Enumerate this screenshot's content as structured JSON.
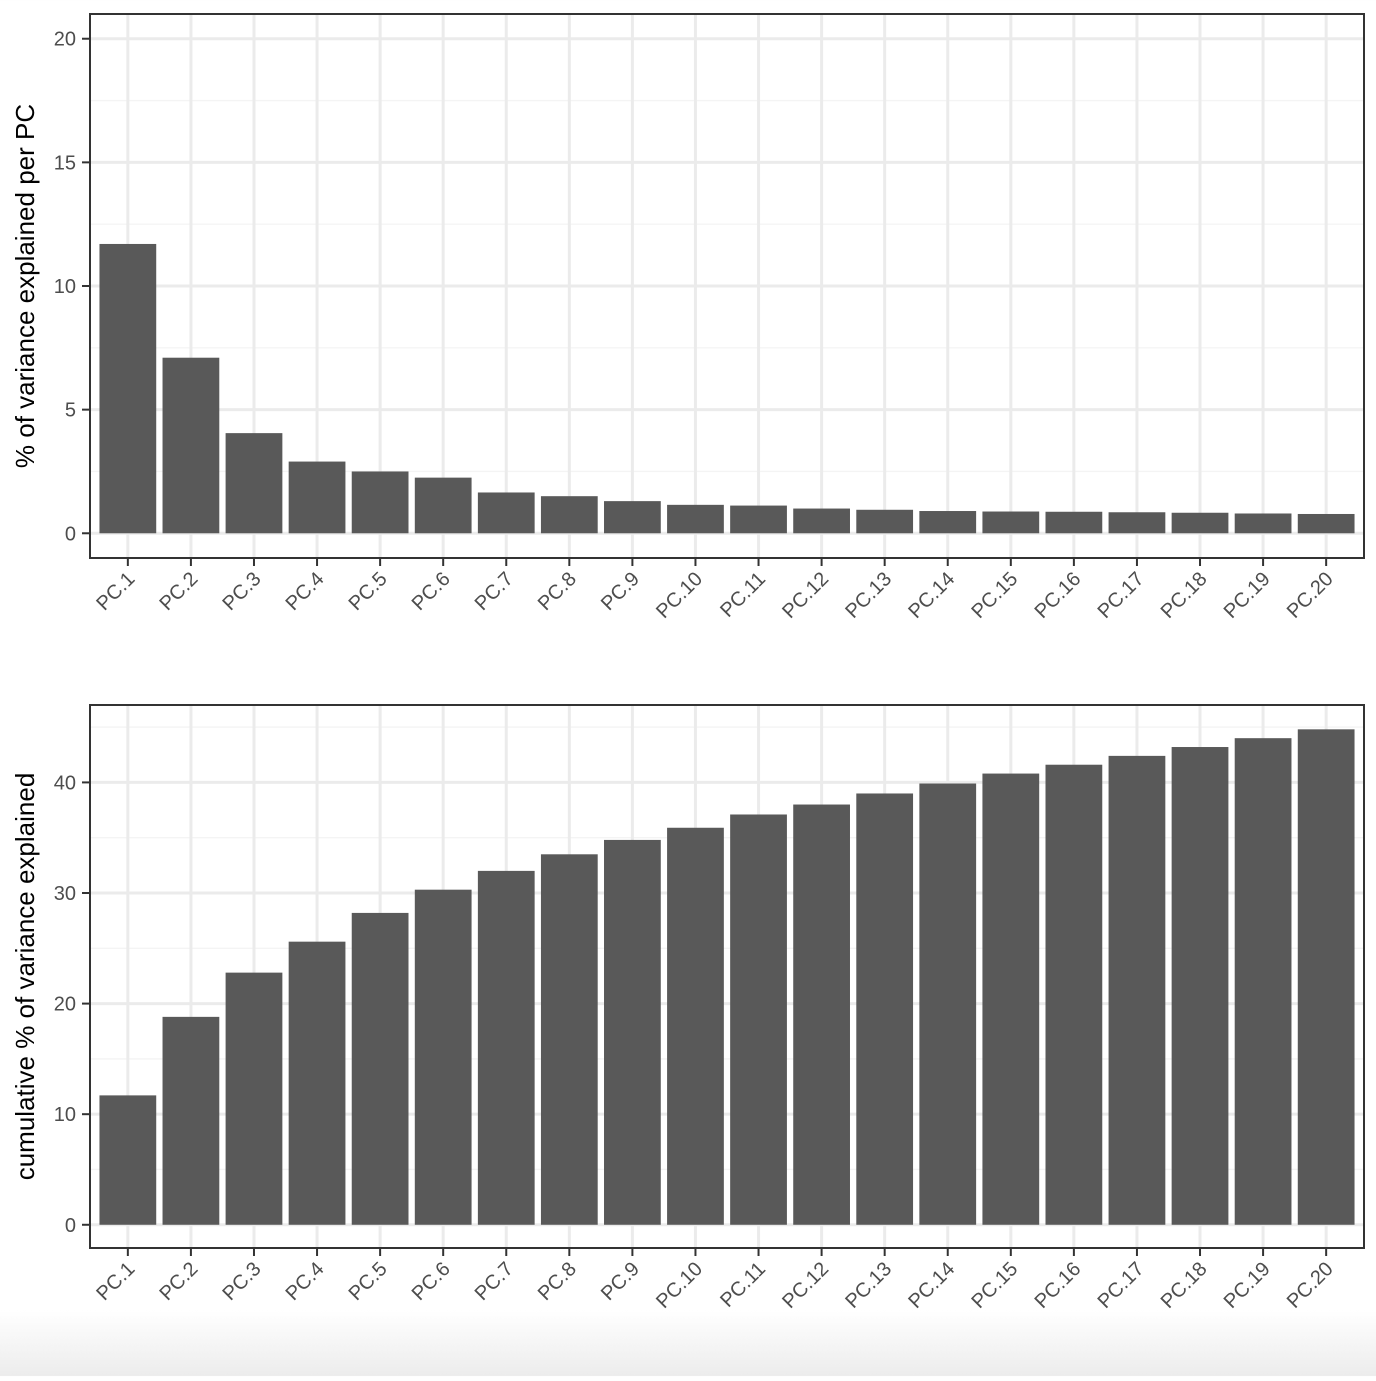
{
  "colors": {
    "bar": "#595959",
    "grid_major": "#ebebeb",
    "grid_minor": "#f4f4f4",
    "panel_border": "#333333",
    "tick_text": "#4d4d4d",
    "axis_title": "#000000"
  },
  "chart_data": [
    {
      "type": "bar",
      "title": "",
      "xlabel": "",
      "ylabel": "% of variance explained per PC",
      "categories": [
        "PC.1",
        "PC.2",
        "PC.3",
        "PC.4",
        "PC.5",
        "PC.6",
        "PC.7",
        "PC.8",
        "PC.9",
        "PC.10",
        "PC.11",
        "PC.12",
        "PC.13",
        "PC.14",
        "PC.15",
        "PC.16",
        "PC.17",
        "PC.18",
        "PC.19",
        "PC.20"
      ],
      "values": [
        11.7,
        7.1,
        4.05,
        2.9,
        2.5,
        2.25,
        1.65,
        1.5,
        1.3,
        1.15,
        1.12,
        1.0,
        0.95,
        0.9,
        0.88,
        0.87,
        0.85,
        0.83,
        0.8,
        0.78
      ],
      "ylim": [
        -1,
        21
      ],
      "yticks": [
        0,
        5,
        10,
        15,
        20
      ],
      "grid": true,
      "legend": "none"
    },
    {
      "type": "bar",
      "title": "",
      "xlabel": "",
      "ylabel": "cumulative % of variance explained",
      "categories": [
        "PC.1",
        "PC.2",
        "PC.3",
        "PC.4",
        "PC.5",
        "PC.6",
        "PC.7",
        "PC.8",
        "PC.9",
        "PC.10",
        "PC.11",
        "PC.12",
        "PC.13",
        "PC.14",
        "PC.15",
        "PC.16",
        "PC.17",
        "PC.18",
        "PC.19",
        "PC.20"
      ],
      "values": [
        11.7,
        18.8,
        22.8,
        25.6,
        28.2,
        30.3,
        32.0,
        33.5,
        34.8,
        35.9,
        37.1,
        38.0,
        39.0,
        39.9,
        40.8,
        41.6,
        42.4,
        43.2,
        44.0,
        44.8
      ],
      "ylim": [
        -2.1,
        47.0
      ],
      "yticks": [
        0,
        10,
        20,
        30,
        40
      ],
      "grid": true,
      "legend": "none"
    }
  ]
}
